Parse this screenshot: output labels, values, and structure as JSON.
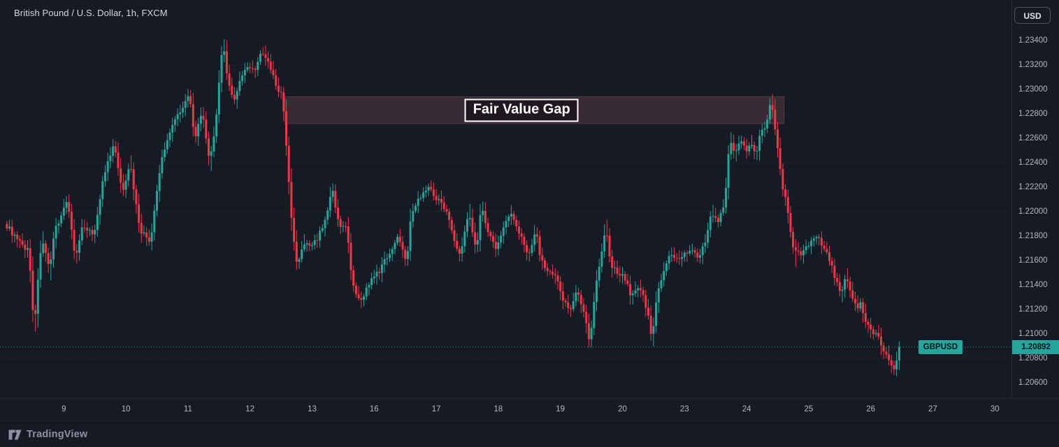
{
  "header": {
    "symbol_title": "British Pound / U.S. Dollar, 1h, FXCM",
    "currency_button": "USD"
  },
  "footer": {
    "brand": "TradingView"
  },
  "chart_data": {
    "type": "candlestick",
    "symbol": "GBPUSD",
    "title": "British Pound / U.S. Dollar",
    "interval": "1h",
    "exchange": "FXCM",
    "last_price": 1.20892,
    "last_price_label": "1.20892",
    "bars_total": 346,
    "colors": {
      "up": "#26a69a",
      "down": "#f23645",
      "last_price_line": "#26a69a",
      "badge_bg": "#26a69a",
      "badge_text": "#0b1423",
      "grid": "rgba(134,142,160,0.055)"
    },
    "y_axis": {
      "tick_step": 0.002,
      "ticks": [
        {
          "label": "1.23400",
          "price": 1.234
        },
        {
          "label": "1.23200",
          "price": 1.232
        },
        {
          "label": "1.23000",
          "price": 1.23
        },
        {
          "label": "1.22800",
          "price": 1.228
        },
        {
          "label": "1.22600",
          "price": 1.226
        },
        {
          "label": "1.22400",
          "price": 1.224
        },
        {
          "label": "1.22200",
          "price": 1.222
        },
        {
          "label": "1.22000",
          "price": 1.22
        },
        {
          "label": "1.21800",
          "price": 1.218
        },
        {
          "label": "1.21600",
          "price": 1.216
        },
        {
          "label": "1.21400",
          "price": 1.214
        },
        {
          "label": "1.21200",
          "price": 1.212
        },
        {
          "label": "1.21000",
          "price": 1.21
        },
        {
          "label": "1.20800",
          "price": 1.208
        },
        {
          "label": "1.20600",
          "price": 1.206
        }
      ]
    },
    "x_axis": {
      "day_labels": [
        {
          "label": "9",
          "bar": 22
        },
        {
          "label": "10",
          "bar": 46
        },
        {
          "label": "11",
          "bar": 70
        },
        {
          "label": "12",
          "bar": 94
        },
        {
          "label": "13",
          "bar": 118
        },
        {
          "label": "16",
          "bar": 142
        },
        {
          "label": "17",
          "bar": 166
        },
        {
          "label": "18",
          "bar": 190
        },
        {
          "label": "19",
          "bar": 214
        },
        {
          "label": "20",
          "bar": 238
        },
        {
          "label": "23",
          "bar": 262
        },
        {
          "label": "24",
          "bar": 286
        },
        {
          "label": "25",
          "bar": 310
        },
        {
          "label": "26",
          "bar": 334
        },
        {
          "label": "27",
          "bar": 358
        },
        {
          "label": "30",
          "bar": 382
        }
      ]
    },
    "annotations": {
      "fvg": {
        "label": "Fair Value Gap",
        "price_top": 1.2294,
        "price_bottom": 1.2272,
        "bar_start": 108,
        "bar_end": 300,
        "band_color": "#392b34",
        "band_border": "#4e3a45",
        "label_offset_bars": -5
      }
    },
    "price_path": [
      [
        0,
        1.219
      ],
      [
        5,
        1.2175
      ],
      [
        9,
        1.2168
      ],
      [
        11,
        1.2105
      ],
      [
        14,
        1.218
      ],
      [
        17,
        1.215
      ],
      [
        19,
        1.2185
      ],
      [
        24,
        1.221
      ],
      [
        27,
        1.216
      ],
      [
        30,
        1.219
      ],
      [
        34,
        1.218
      ],
      [
        38,
        1.223
      ],
      [
        42,
        1.2255
      ],
      [
        45,
        1.2215
      ],
      [
        48,
        1.224
      ],
      [
        52,
        1.2185
      ],
      [
        56,
        1.2175
      ],
      [
        60,
        1.224
      ],
      [
        64,
        1.227
      ],
      [
        68,
        1.2285
      ],
      [
        71,
        1.2295
      ],
      [
        73,
        1.226
      ],
      [
        76,
        1.228
      ],
      [
        79,
        1.224
      ],
      [
        81,
        1.227
      ],
      [
        84,
        1.2338
      ],
      [
        86,
        1.2305
      ],
      [
        88,
        1.229
      ],
      [
        91,
        1.231
      ],
      [
        94,
        1.232
      ],
      [
        96,
        1.2315
      ],
      [
        99,
        1.233
      ],
      [
        102,
        1.232
      ],
      [
        105,
        1.23
      ],
      [
        107,
        1.2295
      ],
      [
        109,
        1.224
      ],
      [
        111,
        1.218
      ],
      [
        113,
        1.2155
      ],
      [
        115,
        1.2175
      ],
      [
        118,
        1.217
      ],
      [
        121,
        1.218
      ],
      [
        124,
        1.2195
      ],
      [
        126,
        1.222
      ],
      [
        129,
        1.219
      ],
      [
        132,
        1.2185
      ],
      [
        134,
        1.214
      ],
      [
        137,
        1.2125
      ],
      [
        140,
        1.214
      ],
      [
        144,
        1.215
      ],
      [
        148,
        1.2165
      ],
      [
        152,
        1.218
      ],
      [
        155,
        1.216
      ],
      [
        157,
        1.22
      ],
      [
        161,
        1.2215
      ],
      [
        164,
        1.222
      ],
      [
        167,
        1.221
      ],
      [
        171,
        1.22
      ],
      [
        174,
        1.217
      ],
      [
        176,
        1.2165
      ],
      [
        179,
        1.22
      ],
      [
        182,
        1.217
      ],
      [
        184,
        1.2205
      ],
      [
        187,
        1.218
      ],
      [
        190,
        1.217
      ],
      [
        192,
        1.2185
      ],
      [
        195,
        1.22
      ],
      [
        199,
        1.218
      ],
      [
        202,
        1.2165
      ],
      [
        205,
        1.2185
      ],
      [
        207,
        1.216
      ],
      [
        210,
        1.215
      ],
      [
        213,
        1.2145
      ],
      [
        215,
        1.213
      ],
      [
        218,
        1.212
      ],
      [
        221,
        1.2135
      ],
      [
        224,
        1.2115
      ],
      [
        226,
        1.2092
      ],
      [
        228,
        1.214
      ],
      [
        230,
        1.216
      ],
      [
        232,
        1.219
      ],
      [
        234,
        1.2155
      ],
      [
        237,
        1.215
      ],
      [
        240,
        1.2145
      ],
      [
        242,
        1.213
      ],
      [
        245,
        1.214
      ],
      [
        248,
        1.212
      ],
      [
        250,
        1.2095
      ],
      [
        252,
        1.2135
      ],
      [
        255,
        1.2155
      ],
      [
        257,
        1.2165
      ],
      [
        260,
        1.216
      ],
      [
        263,
        1.2165
      ],
      [
        265,
        1.217
      ],
      [
        268,
        1.216
      ],
      [
        271,
        1.218
      ],
      [
        273,
        1.22
      ],
      [
        275,
        1.219
      ],
      [
        278,
        1.2208
      ],
      [
        280,
        1.2258
      ],
      [
        282,
        1.2245
      ],
      [
        284,
        1.226
      ],
      [
        286,
        1.225
      ],
      [
        288,
        1.2256
      ],
      [
        290,
        1.2245
      ],
      [
        292,
        1.2265
      ],
      [
        294,
        1.2272
      ],
      [
        296,
        1.2292
      ],
      [
        297,
        1.2275
      ],
      [
        298,
        1.2262
      ],
      [
        300,
        1.2225
      ],
      [
        302,
        1.2205
      ],
      [
        303,
        1.2192
      ],
      [
        305,
        1.2162
      ],
      [
        306,
        1.217
      ],
      [
        308,
        1.2165
      ],
      [
        310,
        1.2172
      ],
      [
        312,
        1.2176
      ],
      [
        314,
        1.2179
      ],
      [
        316,
        1.2172
      ],
      [
        318,
        1.2165
      ],
      [
        320,
        1.215
      ],
      [
        322,
        1.214
      ],
      [
        323,
        1.2132
      ],
      [
        325,
        1.2148
      ],
      [
        327,
        1.2132
      ],
      [
        329,
        1.212
      ],
      [
        331,
        1.2126
      ],
      [
        332,
        1.2112
      ],
      [
        334,
        1.2106
      ],
      [
        336,
        1.21
      ],
      [
        338,
        1.2096
      ],
      [
        339,
        1.2087
      ],
      [
        341,
        1.2081
      ],
      [
        343,
        1.2074
      ],
      [
        344,
        1.2071
      ],
      [
        345,
        1.20892
      ]
    ]
  }
}
